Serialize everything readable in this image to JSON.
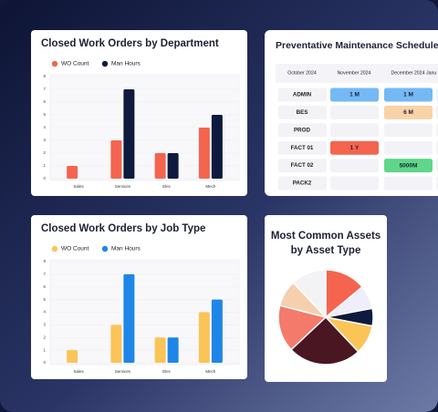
{
  "chart_data": [
    {
      "type": "bar",
      "title": "Closed Work Orders by Department",
      "categories": [
        "Sales",
        "Services",
        "Elec",
        "Mech"
      ],
      "series": [
        {
          "name": "WO Count",
          "color": "#f4644f",
          "values": [
            1,
            3,
            2,
            4
          ]
        },
        {
          "name": "Man Hours",
          "color": "#0e1a3e",
          "values": [
            0,
            7,
            2,
            5
          ]
        }
      ],
      "ylim": [
        0,
        8
      ],
      "yticks": [
        0,
        1,
        2,
        3,
        4,
        5,
        6,
        7,
        8
      ],
      "grid": true,
      "legend": "top"
    },
    {
      "type": "bar",
      "title": "Closed Work Orders by Job Type",
      "categories": [
        "Sales",
        "Services",
        "Elec",
        "Mech"
      ],
      "series": [
        {
          "name": "WO Count",
          "color": "#fbc457",
          "values": [
            1,
            3,
            2,
            4
          ]
        },
        {
          "name": "Man Hours",
          "color": "#1f86e8",
          "values": [
            0,
            7,
            2,
            5
          ]
        }
      ],
      "ylim": [
        0,
        8
      ],
      "yticks": [
        0,
        1,
        2,
        3,
        4,
        5,
        6,
        7,
        8
      ],
      "grid": true,
      "legend": "top"
    },
    {
      "type": "pie",
      "title": "Most Common Assets by Asset Type",
      "values": [
        14,
        8,
        6,
        10,
        25,
        16,
        9,
        12
      ],
      "colors": [
        "#f4644f",
        "#efeefa",
        "#0e1a3e",
        "#fbc457",
        "#4a1621",
        "#f47a6c",
        "#f5cfae",
        "#f3f3f6"
      ]
    }
  ],
  "schedule": {
    "title": "Preventative Maintenance Schedule",
    "columns": [
      "October 2024",
      "November 2024",
      "December 2024",
      "Janu"
    ],
    "rows": [
      {
        "label": "ADMIN",
        "cells": [
          {
            "text": "1 M",
            "color": "#74b9f5"
          },
          {
            "text": "1 M",
            "color": "#74b9f5"
          }
        ]
      },
      {
        "label": "BES",
        "cells": [
          null,
          {
            "text": "6 M",
            "color": "#f9d3a8"
          }
        ]
      },
      {
        "label": "PROD",
        "cells": [
          null,
          null
        ]
      },
      {
        "label": "FACT 01",
        "cells": [
          {
            "text": "1 Y",
            "color": "#f4644f"
          },
          null
        ]
      },
      {
        "label": "FACT 02",
        "cells": [
          null,
          {
            "text": "5000M",
            "color": "#5fd68a"
          }
        ]
      },
      {
        "label": "PACK2",
        "cells": [
          null,
          null
        ]
      }
    ]
  }
}
